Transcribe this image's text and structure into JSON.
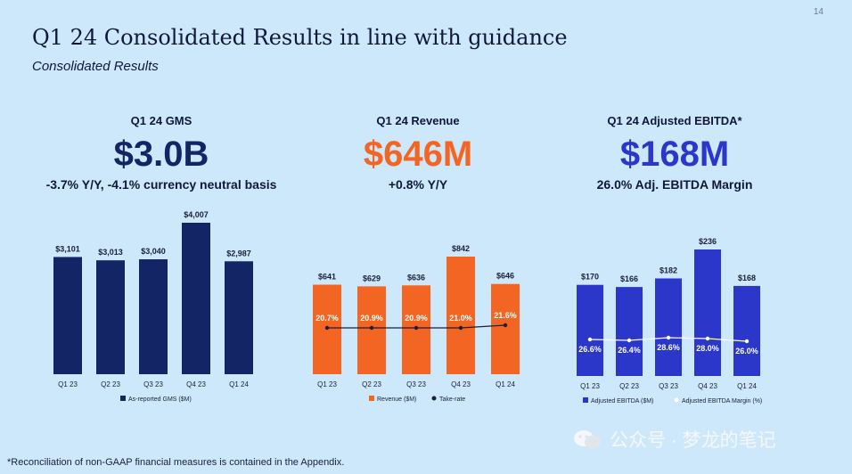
{
  "page_number": "14",
  "title": "Q1 24 Consolidated Results in line with guidance",
  "subtitle": "Consolidated Results",
  "footnote": "*Reconciliation of non-GAAP financial measures is contained in the Appendix.",
  "watermark": "公众号 · 梦龙的笔记",
  "panels": [
    {
      "label": "Q1 24 GMS",
      "big": "$3.0B",
      "big_color": "#142566",
      "sub": "-3.7% Y/Y, -4.1% currency neutral basis"
    },
    {
      "label": "Q1 24 Revenue",
      "big": "$646M",
      "big_color": "#f26522",
      "sub": "+0.8% Y/Y"
    },
    {
      "label": "Q1 24 Adjusted EBITDA*",
      "big": "$168M",
      "big_color": "#2b37c8",
      "sub": "26.0% Adj. EBITDA Margin"
    }
  ],
  "chart_data": [
    {
      "type": "bar",
      "categories": [
        "Q1 23",
        "Q2 23",
        "Q3 23",
        "Q4 23",
        "Q1 24"
      ],
      "series": [
        {
          "name": "As-reported GMS ($M)",
          "values": [
            3101,
            3013,
            3040,
            4007,
            2987
          ],
          "labels": [
            "$3,101",
            "$3,013",
            "$3,040",
            "$4,007",
            "$2,987"
          ],
          "color": "#142566"
        }
      ],
      "ylim": [
        0,
        4007
      ]
    },
    {
      "type": "bar",
      "categories": [
        "Q1 23",
        "Q2 23",
        "Q3 23",
        "Q4 23",
        "Q1 24"
      ],
      "series": [
        {
          "name": "Revenue ($M)",
          "values": [
            641,
            629,
            636,
            842,
            646
          ],
          "labels": [
            "$641",
            "$629",
            "$636",
            "$842",
            "$646"
          ],
          "color": "#f26522"
        },
        {
          "name": "Take-rate",
          "type": "line",
          "values": [
            20.7,
            20.9,
            20.9,
            21.0,
            21.6
          ],
          "labels": [
            "20.7%",
            "20.9%",
            "20.9%",
            "21.0%",
            "21.6%"
          ],
          "color": "#1a1f3a"
        }
      ],
      "ylim": [
        0,
        842
      ]
    },
    {
      "type": "bar",
      "categories": [
        "Q1 23",
        "Q2 23",
        "Q3 23",
        "Q4 23",
        "Q1 24"
      ],
      "series": [
        {
          "name": "Adjusted EBITDA ($M)",
          "values": [
            170,
            166,
            182,
            236,
            168
          ],
          "labels": [
            "$170",
            "$166",
            "$182",
            "$236",
            "$168"
          ],
          "color": "#2b37c8"
        },
        {
          "name": "Adjusted EBITDA Margin (%)",
          "type": "line",
          "values": [
            26.6,
            26.4,
            28.6,
            28.0,
            26.0
          ],
          "labels": [
            "26.6%",
            "26.4%",
            "28.6%",
            "28.0%",
            "26.0%"
          ],
          "color": "#ffffff"
        }
      ],
      "ylim": [
        0,
        236
      ]
    }
  ]
}
